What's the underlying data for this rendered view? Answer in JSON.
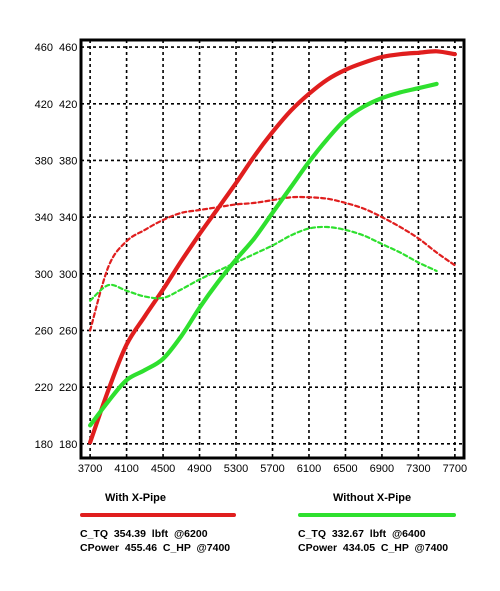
{
  "chart_data": {
    "type": "line",
    "title": "",
    "xlabel": "",
    "ylabel": "",
    "xlim": [
      3600,
      7800
    ],
    "ylim": [
      170,
      465
    ],
    "x_ticks": [
      "3700",
      "4100",
      "4500",
      "4900",
      "5300",
      "5700",
      "6100",
      "6500",
      "6900",
      "7300",
      "7700"
    ],
    "y_ticks": [
      "460",
      "420",
      "380",
      "340",
      "300",
      "260",
      "220",
      "180"
    ],
    "grid": true,
    "legend_position": "bottom",
    "series": [
      {
        "name": "With X-Pipe",
        "metric": "power",
        "style": "solid",
        "color": "#e01e1e",
        "x": [
          3700,
          3900,
          4100,
          4300,
          4500,
          4700,
          4900,
          5100,
          5300,
          5500,
          5700,
          5900,
          6100,
          6300,
          6500,
          6700,
          6900,
          7100,
          7300,
          7500,
          7700
        ],
        "y": [
          181,
          218,
          250,
          270,
          289,
          309,
          328,
          346,
          364,
          383,
          400,
          415,
          427,
          437,
          444,
          449,
          453,
          455,
          456,
          457,
          455
        ]
      },
      {
        "name": "With X-Pipe",
        "metric": "torque",
        "style": "dashed",
        "color": "#e01e1e",
        "x": [
          3700,
          3900,
          4100,
          4300,
          4500,
          4700,
          4900,
          5100,
          5300,
          5500,
          5700,
          5900,
          6100,
          6300,
          6500,
          6700,
          6900,
          7100,
          7300,
          7500,
          7700
        ],
        "y": [
          260,
          305,
          323,
          331,
          338,
          343,
          345,
          347,
          349,
          350,
          352,
          354,
          354,
          353,
          350,
          346,
          340,
          333,
          325,
          315,
          306
        ]
      },
      {
        "name": "Without X-Pipe",
        "metric": "power",
        "style": "solid",
        "color": "#2ee02e",
        "x": [
          3700,
          3900,
          4100,
          4300,
          4500,
          4700,
          4900,
          5100,
          5300,
          5500,
          5700,
          5900,
          6100,
          6300,
          6500,
          6700,
          6900,
          7100,
          7300,
          7500
        ],
        "y": [
          193,
          210,
          225,
          232,
          240,
          256,
          276,
          294,
          310,
          325,
          343,
          361,
          379,
          395,
          409,
          418,
          424,
          428,
          431,
          434
        ]
      },
      {
        "name": "Without X-Pipe",
        "metric": "torque",
        "style": "dashed",
        "color": "#2ee02e",
        "x": [
          3700,
          3900,
          4100,
          4300,
          4500,
          4700,
          4900,
          5100,
          5300,
          5500,
          5700,
          5900,
          6100,
          6300,
          6500,
          6700,
          6900,
          7100,
          7300,
          7500
        ],
        "y": [
          281,
          292,
          288,
          284,
          283,
          289,
          296,
          302,
          308,
          314,
          320,
          327,
          332,
          333,
          331,
          327,
          321,
          315,
          308,
          302
        ]
      }
    ]
  },
  "legend": {
    "with": {
      "title": "With X-Pipe",
      "color": "#e01e1e",
      "torque_line": "C_TQ  354.39  lbft  @6200",
      "power_line": "CPower  455.46  C_HP  @7400"
    },
    "without": {
      "title": "Without X-Pipe",
      "color": "#2ee02e",
      "torque_line": "C_TQ  332.67  lbft  @6400",
      "power_line": "CPower  434.05  C_HP  @7400"
    }
  }
}
